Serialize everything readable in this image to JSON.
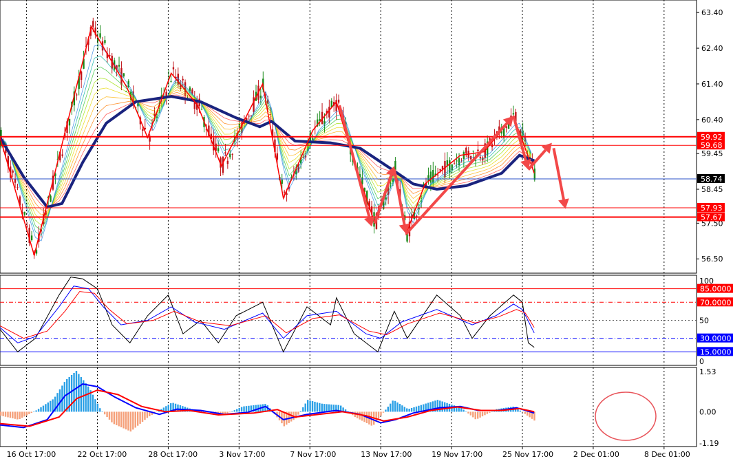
{
  "chart_data": [
    {
      "type": "candlestick",
      "panel": "price",
      "ylim": [
        56.1,
        63.75
      ],
      "y_ticks": [
        "63.40",
        "62.40",
        "61.40",
        "60.40",
        "59.45",
        "58.45",
        "57.50",
        "56.50"
      ],
      "y_tick_values": [
        63.4,
        62.4,
        61.4,
        60.4,
        59.45,
        58.45,
        57.5,
        56.5
      ],
      "x_ticks": [
        "16 Oct 17:00",
        "22 Oct 17:00",
        "28 Oct 17:00",
        "3 Nov 17:00",
        "7 Nov 17:00",
        "13 Nov 17:00",
        "19 Nov 17:00",
        "25 Nov 17:00",
        "2 Dec 01:00",
        "8 Dec 01:00"
      ],
      "x_tick_index": [
        45,
        165,
        285,
        405,
        525,
        645,
        765,
        885,
        1005,
        1125
      ],
      "bar_count": 1180,
      "price_levels": [
        {
          "label": "59.92",
          "value": 59.92,
          "color": "#ff0000"
        },
        {
          "label": "59.68",
          "value": 59.68,
          "color": "#ff0000"
        },
        {
          "label": "57.93",
          "value": 57.93,
          "color": "#ff0000"
        },
        {
          "label": "57.67",
          "value": 57.67,
          "color": "#ff0000"
        }
      ],
      "current_price": {
        "label": "58.74",
        "value": 58.74,
        "color": "#000000"
      },
      "zigzag": [
        {
          "i": 0,
          "v": 59.9
        },
        {
          "i": 58,
          "v": 56.6
        },
        {
          "i": 155,
          "v": 63.0
        },
        {
          "i": 215,
          "v": 61.3
        },
        {
          "i": 250,
          "v": 59.9
        },
        {
          "i": 290,
          "v": 61.7
        },
        {
          "i": 335,
          "v": 60.8
        },
        {
          "i": 375,
          "v": 59.1
        },
        {
          "i": 445,
          "v": 61.4
        },
        {
          "i": 480,
          "v": 58.2
        },
        {
          "i": 530,
          "v": 60.1
        },
        {
          "i": 570,
          "v": 60.9
        },
        {
          "i": 600,
          "v": 59.2
        },
        {
          "i": 635,
          "v": 57.5
        },
        {
          "i": 668,
          "v": 59.0
        },
        {
          "i": 688,
          "v": 57.2
        },
        {
          "i": 720,
          "v": 58.6
        },
        {
          "i": 780,
          "v": 59.4
        },
        {
          "i": 820,
          "v": 59.5
        },
        {
          "i": 870,
          "v": 60.5
        },
        {
          "i": 905,
          "v": 58.9
        }
      ],
      "moving_average": [
        {
          "i": 0,
          "v": 59.9
        },
        {
          "i": 40,
          "v": 58.8
        },
        {
          "i": 80,
          "v": 57.95
        },
        {
          "i": 105,
          "v": 58.05
        },
        {
          "i": 140,
          "v": 59.2
        },
        {
          "i": 180,
          "v": 60.3
        },
        {
          "i": 230,
          "v": 60.9
        },
        {
          "i": 290,
          "v": 61.05
        },
        {
          "i": 340,
          "v": 60.9
        },
        {
          "i": 400,
          "v": 60.45
        },
        {
          "i": 440,
          "v": 60.2
        },
        {
          "i": 460,
          "v": 60.35
        },
        {
          "i": 500,
          "v": 59.8
        },
        {
          "i": 560,
          "v": 59.75
        },
        {
          "i": 610,
          "v": 59.6
        },
        {
          "i": 660,
          "v": 59.05
        },
        {
          "i": 700,
          "v": 58.6
        },
        {
          "i": 740,
          "v": 58.45
        },
        {
          "i": 790,
          "v": 58.55
        },
        {
          "i": 850,
          "v": 58.9
        },
        {
          "i": 880,
          "v": 59.4
        },
        {
          "i": 905,
          "v": 59.25
        }
      ],
      "forecast_arrows": [
        {
          "from": {
            "i": 575,
            "v": 60.8
          },
          "to": {
            "i": 630,
            "v": 57.4
          }
        },
        {
          "from": {
            "i": 635,
            "v": 57.5
          },
          "to": {
            "i": 668,
            "v": 59.1
          }
        },
        {
          "from": {
            "i": 668,
            "v": 59.0
          },
          "to": {
            "i": 688,
            "v": 57.2
          }
        },
        {
          "from": {
            "i": 688,
            "v": 57.2
          },
          "to": {
            "i": 870,
            "v": 60.5
          }
        },
        {
          "from": {
            "i": 870,
            "v": 60.5
          },
          "to": {
            "i": 895,
            "v": 59.0
          }
        },
        {
          "from": {
            "i": 895,
            "v": 59.0
          },
          "to": {
            "i": 935,
            "v": 59.75
          }
        },
        {
          "from": {
            "i": 938,
            "v": 59.6
          },
          "to": {
            "i": 958,
            "v": 57.9
          }
        }
      ]
    },
    {
      "type": "line",
      "panel": "oscillator",
      "ylim": [
        0,
        100
      ],
      "y_ticks": [
        "100",
        "50",
        "0"
      ],
      "y_tick_values": [
        100,
        50,
        0
      ],
      "levels": [
        {
          "label": "85.0000",
          "value": 85,
          "color": "#ff0000"
        },
        {
          "label": "70.0000",
          "value": 70,
          "color": "#ff0000"
        },
        {
          "label": "30.0000",
          "value": 30,
          "color": "#0000ff"
        },
        {
          "label": "15.0000",
          "value": 15,
          "color": "#0000ff"
        }
      ],
      "series": [
        {
          "color": "#000000",
          "points": [
            {
              "i": 0,
              "v": 40
            },
            {
              "i": 30,
              "v": 15
            },
            {
              "i": 60,
              "v": 30
            },
            {
              "i": 100,
              "v": 78
            },
            {
              "i": 120,
              "v": 98
            },
            {
              "i": 140,
              "v": 96
            },
            {
              "i": 165,
              "v": 85
            },
            {
              "i": 190,
              "v": 45
            },
            {
              "i": 220,
              "v": 25
            },
            {
              "i": 250,
              "v": 55
            },
            {
              "i": 285,
              "v": 78
            },
            {
              "i": 310,
              "v": 35
            },
            {
              "i": 340,
              "v": 50
            },
            {
              "i": 370,
              "v": 25
            },
            {
              "i": 400,
              "v": 55
            },
            {
              "i": 445,
              "v": 70
            },
            {
              "i": 480,
              "v": 15
            },
            {
              "i": 520,
              "v": 65
            },
            {
              "i": 560,
              "v": 45
            },
            {
              "i": 570,
              "v": 75
            },
            {
              "i": 600,
              "v": 35
            },
            {
              "i": 640,
              "v": 15
            },
            {
              "i": 668,
              "v": 60
            },
            {
              "i": 690,
              "v": 30
            },
            {
              "i": 740,
              "v": 78
            },
            {
              "i": 780,
              "v": 55
            },
            {
              "i": 800,
              "v": 30
            },
            {
              "i": 830,
              "v": 55
            },
            {
              "i": 870,
              "v": 78
            },
            {
              "i": 885,
              "v": 70
            },
            {
              "i": 895,
              "v": 25
            },
            {
              "i": 905,
              "v": 20
            }
          ]
        },
        {
          "color": "#0000ff",
          "points": [
            {
              "i": 0,
              "v": 42
            },
            {
              "i": 30,
              "v": 25
            },
            {
              "i": 60,
              "v": 32
            },
            {
              "i": 100,
              "v": 65
            },
            {
              "i": 125,
              "v": 88
            },
            {
              "i": 150,
              "v": 85
            },
            {
              "i": 175,
              "v": 65
            },
            {
              "i": 205,
              "v": 45
            },
            {
              "i": 250,
              "v": 50
            },
            {
              "i": 290,
              "v": 65
            },
            {
              "i": 330,
              "v": 48
            },
            {
              "i": 380,
              "v": 40
            },
            {
              "i": 445,
              "v": 58
            },
            {
              "i": 480,
              "v": 30
            },
            {
              "i": 520,
              "v": 55
            },
            {
              "i": 570,
              "v": 60
            },
            {
              "i": 620,
              "v": 35
            },
            {
              "i": 645,
              "v": 30
            },
            {
              "i": 680,
              "v": 48
            },
            {
              "i": 740,
              "v": 62
            },
            {
              "i": 800,
              "v": 45
            },
            {
              "i": 840,
              "v": 55
            },
            {
              "i": 870,
              "v": 68
            },
            {
              "i": 885,
              "v": 62
            },
            {
              "i": 905,
              "v": 36
            }
          ]
        },
        {
          "color": "#ff0000",
          "points": [
            {
              "i": 0,
              "v": 44
            },
            {
              "i": 40,
              "v": 30
            },
            {
              "i": 80,
              "v": 38
            },
            {
              "i": 110,
              "v": 60
            },
            {
              "i": 135,
              "v": 82
            },
            {
              "i": 160,
              "v": 80
            },
            {
              "i": 185,
              "v": 62
            },
            {
              "i": 215,
              "v": 46
            },
            {
              "i": 260,
              "v": 50
            },
            {
              "i": 295,
              "v": 60
            },
            {
              "i": 340,
              "v": 48
            },
            {
              "i": 390,
              "v": 44
            },
            {
              "i": 450,
              "v": 55
            },
            {
              "i": 485,
              "v": 36
            },
            {
              "i": 530,
              "v": 52
            },
            {
              "i": 575,
              "v": 56
            },
            {
              "i": 625,
              "v": 38
            },
            {
              "i": 655,
              "v": 34
            },
            {
              "i": 690,
              "v": 46
            },
            {
              "i": 745,
              "v": 58
            },
            {
              "i": 805,
              "v": 47
            },
            {
              "i": 845,
              "v": 54
            },
            {
              "i": 875,
              "v": 62
            },
            {
              "i": 890,
              "v": 58
            },
            {
              "i": 905,
              "v": 42
            }
          ]
        }
      ]
    },
    {
      "type": "bar",
      "panel": "macd",
      "ylim": [
        -1.32,
        1.68
      ],
      "y_ticks": [
        "1.53",
        "0.00",
        "-1.19"
      ],
      "y_tick_values": [
        1.53,
        0,
        -1.19
      ],
      "histogram": [
        {
          "i": 0,
          "v": -0.15
        },
        {
          "i": 30,
          "v": -0.3
        },
        {
          "i": 60,
          "v": 0.05
        },
        {
          "i": 90,
          "v": 0.5
        },
        {
          "i": 110,
          "v": 1.2
        },
        {
          "i": 128,
          "v": 1.55
        },
        {
          "i": 150,
          "v": 0.9
        },
        {
          "i": 170,
          "v": 0.05
        },
        {
          "i": 190,
          "v": -0.45
        },
        {
          "i": 220,
          "v": -0.75
        },
        {
          "i": 250,
          "v": -0.2
        },
        {
          "i": 290,
          "v": 0.35
        },
        {
          "i": 330,
          "v": 0.05
        },
        {
          "i": 380,
          "v": -0.1
        },
        {
          "i": 410,
          "v": 0.2
        },
        {
          "i": 450,
          "v": 0.3
        },
        {
          "i": 480,
          "v": -0.55
        },
        {
          "i": 500,
          "v": -0.25
        },
        {
          "i": 520,
          "v": 0.45
        },
        {
          "i": 545,
          "v": 0.3
        },
        {
          "i": 575,
          "v": 0.25
        },
        {
          "i": 600,
          "v": -0.2
        },
        {
          "i": 630,
          "v": -0.55
        },
        {
          "i": 665,
          "v": 0.45
        },
        {
          "i": 690,
          "v": 0.1
        },
        {
          "i": 740,
          "v": 0.45
        },
        {
          "i": 780,
          "v": 0.15
        },
        {
          "i": 805,
          "v": -0.3
        },
        {
          "i": 840,
          "v": 0.1
        },
        {
          "i": 870,
          "v": 0.2
        },
        {
          "i": 905,
          "v": -0.35
        }
      ],
      "series": [
        {
          "color": "#0000ff",
          "points": [
            {
              "i": 0,
              "v": -0.5
            },
            {
              "i": 40,
              "v": -0.6
            },
            {
              "i": 80,
              "v": -0.3
            },
            {
              "i": 110,
              "v": 0.6
            },
            {
              "i": 140,
              "v": 1.05
            },
            {
              "i": 165,
              "v": 0.95
            },
            {
              "i": 195,
              "v": 0.55
            },
            {
              "i": 230,
              "v": 0.15
            },
            {
              "i": 270,
              "v": -0.1
            },
            {
              "i": 300,
              "v": 0.1
            },
            {
              "i": 340,
              "v": 0.05
            },
            {
              "i": 380,
              "v": -0.1
            },
            {
              "i": 420,
              "v": -0.02
            },
            {
              "i": 450,
              "v": 0.2
            },
            {
              "i": 480,
              "v": -0.3
            },
            {
              "i": 520,
              "v": -0.1
            },
            {
              "i": 570,
              "v": 0.05
            },
            {
              "i": 610,
              "v": -0.1
            },
            {
              "i": 645,
              "v": -0.42
            },
            {
              "i": 670,
              "v": -0.3
            },
            {
              "i": 700,
              "v": -0.05
            },
            {
              "i": 745,
              "v": 0.15
            },
            {
              "i": 780,
              "v": 0.2
            },
            {
              "i": 810,
              "v": 0.05
            },
            {
              "i": 845,
              "v": 0.05
            },
            {
              "i": 875,
              "v": 0.15
            },
            {
              "i": 905,
              "v": -0.05
            }
          ]
        },
        {
          "color": "#ff0000",
          "points": [
            {
              "i": 0,
              "v": -0.45
            },
            {
              "i": 50,
              "v": -0.55
            },
            {
              "i": 100,
              "v": -0.2
            },
            {
              "i": 130,
              "v": 0.5
            },
            {
              "i": 165,
              "v": 0.82
            },
            {
              "i": 200,
              "v": 0.65
            },
            {
              "i": 240,
              "v": 0.2
            },
            {
              "i": 280,
              "v": 0.0
            },
            {
              "i": 320,
              "v": 0.05
            },
            {
              "i": 370,
              "v": -0.12
            },
            {
              "i": 430,
              "v": -0.05
            },
            {
              "i": 470,
              "v": 0.08
            },
            {
              "i": 500,
              "v": -0.2
            },
            {
              "i": 540,
              "v": -0.1
            },
            {
              "i": 580,
              "v": 0.0
            },
            {
              "i": 620,
              "v": -0.15
            },
            {
              "i": 650,
              "v": -0.35
            },
            {
              "i": 690,
              "v": -0.2
            },
            {
              "i": 730,
              "v": 0.05
            },
            {
              "i": 775,
              "v": 0.18
            },
            {
              "i": 815,
              "v": 0.05
            },
            {
              "i": 850,
              "v": 0.05
            },
            {
              "i": 880,
              "v": 0.12
            },
            {
              "i": 905,
              "v": 0.0
            }
          ]
        }
      ]
    }
  ]
}
